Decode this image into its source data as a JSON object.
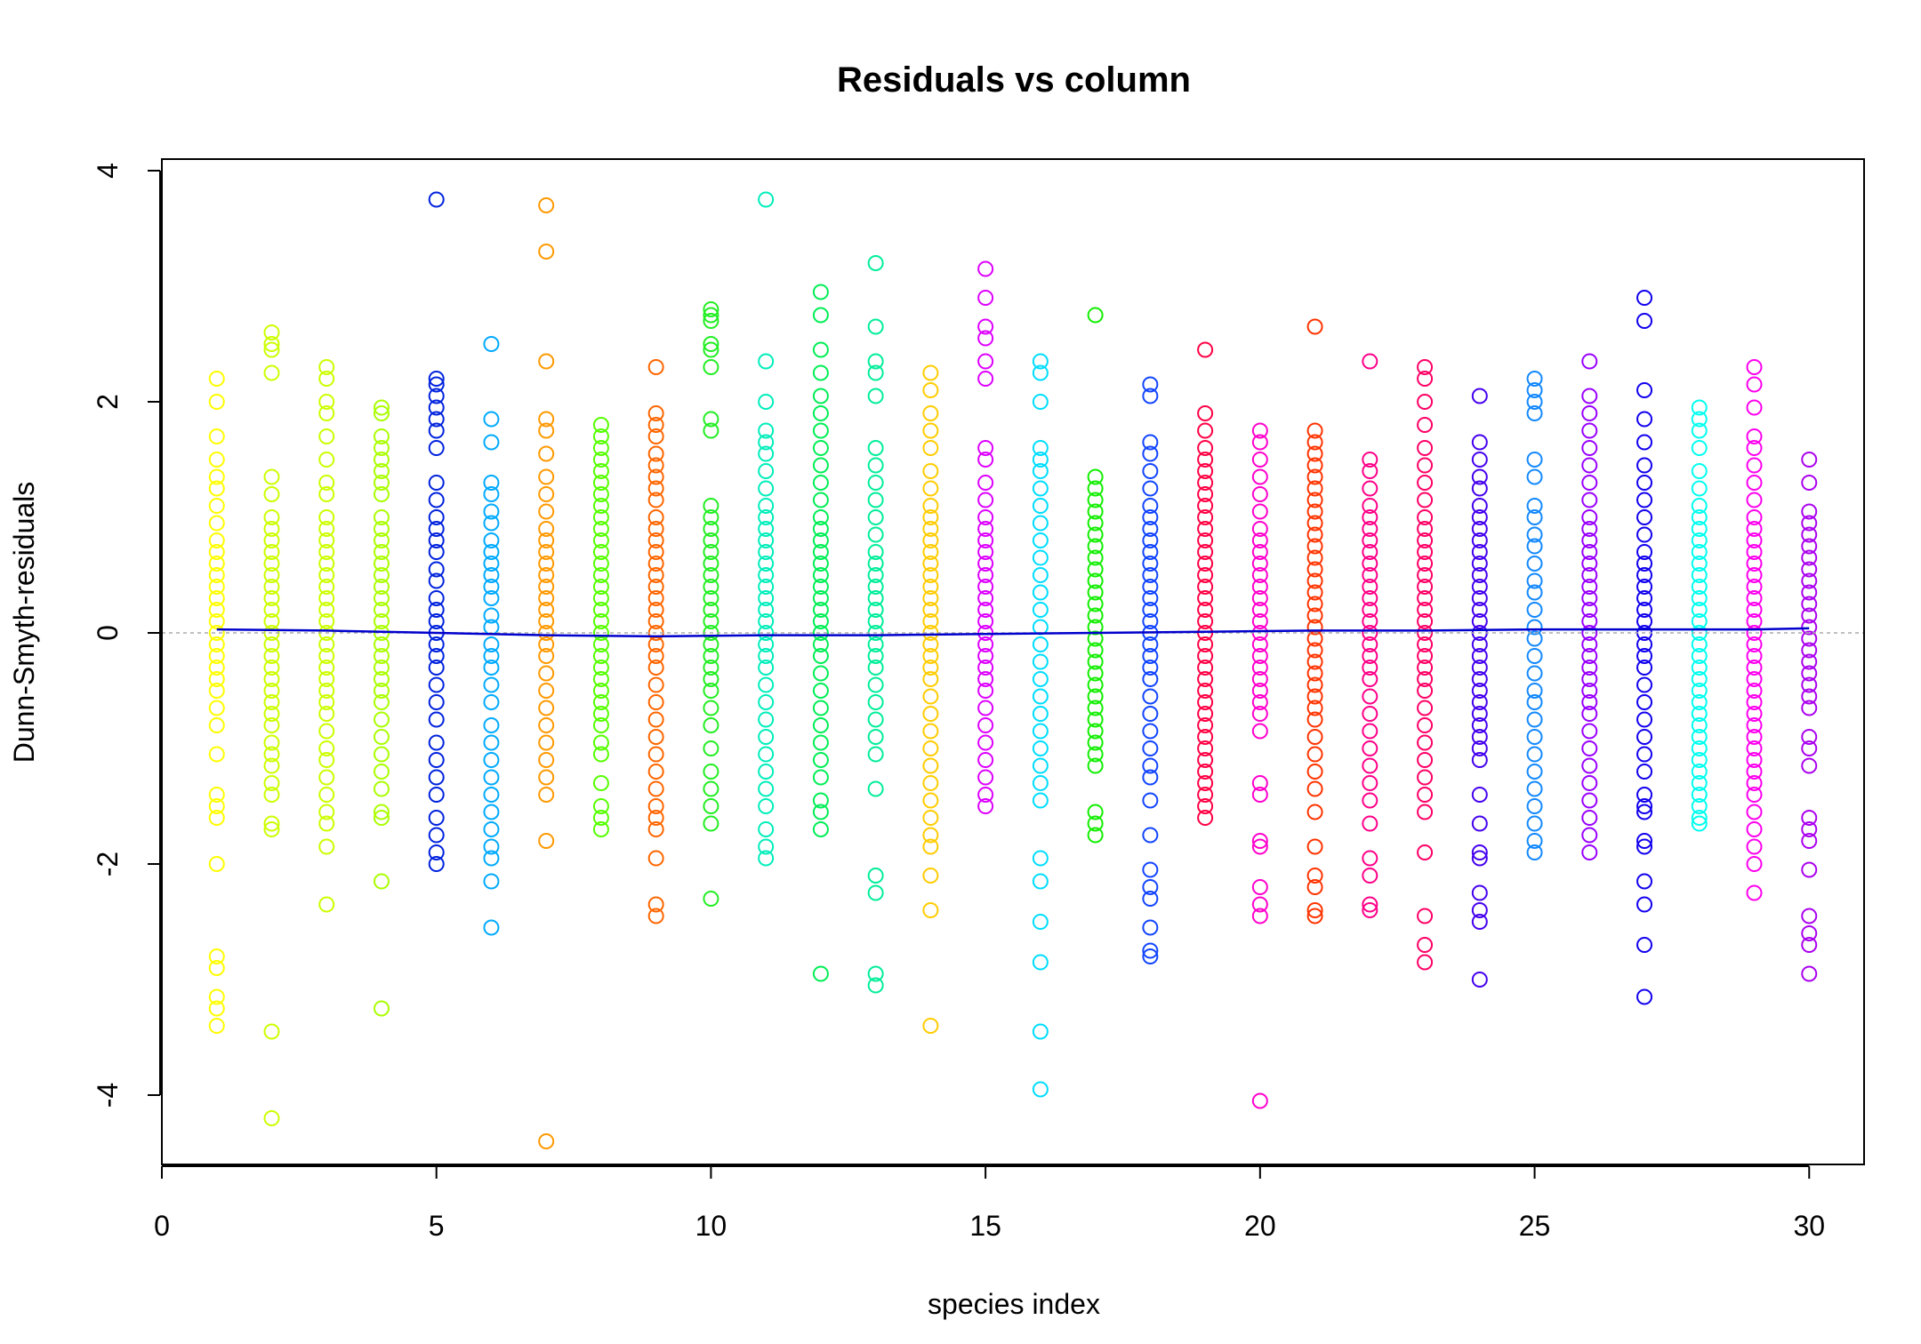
{
  "chart_data": {
    "type": "scatter",
    "title": "Residuals vs column",
    "xlabel": "species index",
    "ylabel": "Dunn-Smyth-residuals",
    "xlim": [
      0,
      31
    ],
    "ylim": [
      -4.6,
      4.1
    ],
    "xticks": [
      0,
      5,
      10,
      15,
      20,
      25,
      30
    ],
    "yticks": [
      -4,
      -2,
      0,
      2,
      4
    ],
    "reference_line": {
      "y": 0,
      "style": "dashed",
      "color": "#aaaaaa"
    },
    "marker": "open-circle",
    "columns": [
      {
        "x": 1,
        "color": "#FFFF00",
        "points": [
          2.2,
          2.0,
          1.7,
          1.5,
          1.35,
          1.25,
          1.1,
          0.95,
          0.8,
          0.7,
          0.6,
          0.5,
          0.4,
          0.3,
          0.2,
          0.1,
          0.0,
          -0.1,
          -0.2,
          -0.3,
          -0.4,
          -0.5,
          -0.65,
          -0.8,
          -1.05,
          -1.4,
          -1.5,
          -1.6,
          -2.0,
          -2.8,
          -2.9,
          -3.15,
          -3.25,
          -3.4
        ]
      },
      {
        "x": 2,
        "color": "#CCFF00",
        "points": [
          2.6,
          2.5,
          2.45,
          2.25,
          1.35,
          1.2,
          1.0,
          0.9,
          0.8,
          0.7,
          0.6,
          0.5,
          0.4,
          0.3,
          0.2,
          0.1,
          0.0,
          -0.1,
          -0.2,
          -0.3,
          -0.4,
          -0.5,
          -0.6,
          -0.7,
          -0.8,
          -0.95,
          -1.05,
          -1.15,
          -1.3,
          -1.4,
          -1.65,
          -1.7,
          -3.45,
          -4.2
        ]
      },
      {
        "x": 3,
        "color": "#CCFF00",
        "points": [
          2.3,
          2.2,
          2.0,
          1.9,
          1.7,
          1.5,
          1.3,
          1.2,
          1.0,
          0.9,
          0.8,
          0.7,
          0.6,
          0.5,
          0.4,
          0.3,
          0.2,
          0.1,
          0.0,
          -0.1,
          -0.2,
          -0.3,
          -0.4,
          -0.5,
          -0.6,
          -0.7,
          -0.85,
          -1.0,
          -1.1,
          -1.25,
          -1.4,
          -1.55,
          -1.65,
          -1.85,
          -2.35
        ]
      },
      {
        "x": 4,
        "color": "#AAFF00",
        "points": [
          1.95,
          1.9,
          1.7,
          1.6,
          1.5,
          1.4,
          1.3,
          1.2,
          1.0,
          0.9,
          0.8,
          0.7,
          0.6,
          0.5,
          0.4,
          0.3,
          0.2,
          0.1,
          0.0,
          -0.1,
          -0.2,
          -0.3,
          -0.4,
          -0.5,
          -0.6,
          -0.75,
          -0.9,
          -1.05,
          -1.2,
          -1.35,
          -1.55,
          -1.6,
          -2.15,
          -3.25
        ]
      },
      {
        "x": 5,
        "color": "#0022DD",
        "points": [
          3.75,
          2.2,
          2.15,
          2.05,
          1.95,
          1.85,
          1.75,
          1.6,
          1.3,
          1.15,
          1.0,
          0.9,
          0.8,
          0.7,
          0.55,
          0.45,
          0.3,
          0.2,
          0.1,
          0.0,
          -0.1,
          -0.2,
          -0.3,
          -0.45,
          -0.6,
          -0.75,
          -0.95,
          -1.1,
          -1.25,
          -1.4,
          -1.6,
          -1.75,
          -1.9,
          -2.0
        ]
      },
      {
        "x": 6,
        "color": "#00AAFF",
        "points": [
          2.5,
          1.85,
          1.65,
          1.3,
          1.2,
          1.05,
          0.95,
          0.8,
          0.7,
          0.6,
          0.5,
          0.4,
          0.3,
          0.15,
          0.05,
          -0.1,
          -0.2,
          -0.3,
          -0.45,
          -0.6,
          -0.8,
          -0.95,
          -1.1,
          -1.25,
          -1.4,
          -1.55,
          -1.7,
          -1.85,
          -1.95,
          -2.15,
          -2.55
        ]
      },
      {
        "x": 7,
        "color": "#FF9900",
        "points": [
          3.7,
          3.3,
          2.35,
          1.85,
          1.75,
          1.55,
          1.35,
          1.2,
          1.05,
          0.9,
          0.8,
          0.7,
          0.6,
          0.5,
          0.4,
          0.3,
          0.2,
          0.1,
          0.0,
          -0.1,
          -0.2,
          -0.35,
          -0.5,
          -0.65,
          -0.8,
          -0.95,
          -1.1,
          -1.25,
          -1.4,
          -1.8,
          -4.4
        ]
      },
      {
        "x": 8,
        "color": "#55FF00",
        "points": [
          1.8,
          1.7,
          1.6,
          1.5,
          1.4,
          1.3,
          1.2,
          1.1,
          1.0,
          0.9,
          0.8,
          0.7,
          0.6,
          0.5,
          0.4,
          0.3,
          0.2,
          0.1,
          0.0,
          -0.1,
          -0.2,
          -0.3,
          -0.4,
          -0.5,
          -0.6,
          -0.7,
          -0.8,
          -0.95,
          -1.05,
          -1.3,
          -1.5,
          -1.6,
          -1.7
        ]
      },
      {
        "x": 9,
        "color": "#FF6600",
        "points": [
          2.3,
          1.9,
          1.8,
          1.7,
          1.55,
          1.45,
          1.35,
          1.25,
          1.15,
          1.0,
          0.9,
          0.8,
          0.7,
          0.6,
          0.5,
          0.4,
          0.3,
          0.2,
          0.1,
          0.0,
          -0.1,
          -0.2,
          -0.3,
          -0.45,
          -0.6,
          -0.75,
          -0.9,
          -1.05,
          -1.2,
          -1.35,
          -1.5,
          -1.6,
          -1.7,
          -1.95,
          -2.35,
          -2.45
        ]
      },
      {
        "x": 10,
        "color": "#22EE22",
        "points": [
          2.8,
          2.75,
          2.7,
          2.5,
          2.45,
          2.3,
          1.85,
          1.75,
          1.1,
          1.0,
          0.9,
          0.8,
          0.7,
          0.6,
          0.5,
          0.4,
          0.3,
          0.2,
          0.1,
          0.0,
          -0.1,
          -0.2,
          -0.3,
          -0.4,
          -0.5,
          -0.65,
          -0.8,
          -1.0,
          -1.2,
          -1.35,
          -1.5,
          -1.65,
          -2.3
        ]
      },
      {
        "x": 11,
        "color": "#00EEBB",
        "points": [
          3.75,
          2.35,
          2.0,
          1.75,
          1.65,
          1.55,
          1.4,
          1.25,
          1.1,
          1.0,
          0.9,
          0.8,
          0.7,
          0.6,
          0.5,
          0.4,
          0.3,
          0.2,
          0.1,
          0.0,
          -0.1,
          -0.2,
          -0.3,
          -0.45,
          -0.6,
          -0.75,
          -0.9,
          -1.05,
          -1.2,
          -1.35,
          -1.5,
          -1.7,
          -1.85,
          -1.95
        ]
      },
      {
        "x": 12,
        "color": "#00EE55",
        "points": [
          2.95,
          2.75,
          2.45,
          2.25,
          2.05,
          1.9,
          1.75,
          1.6,
          1.45,
          1.3,
          1.15,
          1.0,
          0.9,
          0.8,
          0.7,
          0.6,
          0.5,
          0.4,
          0.3,
          0.2,
          0.1,
          0.0,
          -0.1,
          -0.2,
          -0.35,
          -0.5,
          -0.65,
          -0.8,
          -0.95,
          -1.1,
          -1.25,
          -1.45,
          -1.55,
          -1.7,
          -2.95
        ]
      },
      {
        "x": 13,
        "color": "#00EE99",
        "points": [
          3.2,
          2.65,
          2.35,
          2.25,
          2.05,
          1.6,
          1.45,
          1.3,
          1.15,
          1.0,
          0.85,
          0.7,
          0.6,
          0.5,
          0.4,
          0.3,
          0.2,
          0.1,
          0.0,
          -0.1,
          -0.2,
          -0.3,
          -0.45,
          -0.6,
          -0.75,
          -0.9,
          -1.05,
          -1.35,
          -2.1,
          -2.25,
          -2.95,
          -3.05
        ]
      },
      {
        "x": 14,
        "color": "#FFCC00",
        "points": [
          2.25,
          2.1,
          1.9,
          1.75,
          1.6,
          1.4,
          1.25,
          1.1,
          1.0,
          0.9,
          0.8,
          0.7,
          0.6,
          0.5,
          0.4,
          0.3,
          0.2,
          0.1,
          0.0,
          -0.1,
          -0.2,
          -0.3,
          -0.4,
          -0.55,
          -0.7,
          -0.85,
          -1.0,
          -1.15,
          -1.3,
          -1.45,
          -1.6,
          -1.75,
          -1.85,
          -2.1,
          -2.4,
          -3.4
        ]
      },
      {
        "x": 15,
        "color": "#DD00FF",
        "points": [
          3.15,
          2.9,
          2.65,
          2.55,
          2.35,
          2.2,
          1.6,
          1.5,
          1.3,
          1.15,
          1.0,
          0.9,
          0.8,
          0.7,
          0.6,
          0.5,
          0.4,
          0.3,
          0.2,
          0.1,
          0.0,
          -0.1,
          -0.2,
          -0.3,
          -0.4,
          -0.5,
          -0.65,
          -0.8,
          -0.95,
          -1.1,
          -1.25,
          -1.4,
          -1.5
        ]
      },
      {
        "x": 16,
        "color": "#00DDFF",
        "points": [
          2.35,
          2.25,
          2.0,
          1.6,
          1.5,
          1.4,
          1.25,
          1.1,
          0.95,
          0.8,
          0.65,
          0.5,
          0.35,
          0.2,
          0.05,
          -0.1,
          -0.25,
          -0.4,
          -0.55,
          -0.7,
          -0.85,
          -1.0,
          -1.15,
          -1.3,
          -1.45,
          -1.95,
          -2.15,
          -2.5,
          -2.85,
          -3.45,
          -3.95
        ]
      },
      {
        "x": 17,
        "color": "#11EE00",
        "points": [
          2.75,
          1.35,
          1.25,
          1.15,
          1.05,
          0.95,
          0.85,
          0.75,
          0.65,
          0.55,
          0.45,
          0.35,
          0.25,
          0.15,
          0.05,
          -0.05,
          -0.15,
          -0.25,
          -0.35,
          -0.45,
          -0.55,
          -0.65,
          -0.75,
          -0.85,
          -0.95,
          -1.05,
          -1.15,
          -1.55,
          -1.65,
          -1.75
        ]
      },
      {
        "x": 18,
        "color": "#1144FF",
        "points": [
          2.15,
          2.05,
          1.65,
          1.55,
          1.4,
          1.25,
          1.1,
          1.0,
          0.9,
          0.8,
          0.7,
          0.6,
          0.5,
          0.4,
          0.3,
          0.2,
          0.1,
          0.0,
          -0.1,
          -0.2,
          -0.3,
          -0.4,
          -0.55,
          -0.7,
          -0.85,
          -1.0,
          -1.15,
          -1.25,
          -1.45,
          -1.75,
          -2.05,
          -2.2,
          -2.3,
          -2.55,
          -2.75,
          -2.8
        ]
      },
      {
        "x": 19,
        "color": "#FF0044",
        "points": [
          2.45,
          1.9,
          1.75,
          1.6,
          1.5,
          1.4,
          1.3,
          1.2,
          1.1,
          1.0,
          0.9,
          0.8,
          0.7,
          0.6,
          0.5,
          0.4,
          0.3,
          0.2,
          0.1,
          0.0,
          -0.1,
          -0.2,
          -0.3,
          -0.4,
          -0.5,
          -0.6,
          -0.7,
          -0.8,
          -0.9,
          -1.0,
          -1.1,
          -1.2,
          -1.3,
          -1.4,
          -1.5,
          -1.6
        ]
      },
      {
        "x": 20,
        "color": "#FF00CC",
        "points": [
          1.75,
          1.65,
          1.5,
          1.35,
          1.2,
          1.05,
          0.9,
          0.8,
          0.7,
          0.6,
          0.5,
          0.4,
          0.3,
          0.2,
          0.1,
          0.0,
          -0.1,
          -0.2,
          -0.3,
          -0.4,
          -0.5,
          -0.6,
          -0.7,
          -0.85,
          -1.3,
          -1.4,
          -1.8,
          -1.85,
          -2.2,
          -2.35,
          -2.45,
          -4.05
        ]
      },
      {
        "x": 21,
        "color": "#FF3300",
        "points": [
          2.65,
          1.75,
          1.65,
          1.55,
          1.45,
          1.35,
          1.25,
          1.15,
          1.05,
          0.95,
          0.85,
          0.75,
          0.65,
          0.55,
          0.45,
          0.35,
          0.25,
          0.15,
          0.05,
          -0.05,
          -0.15,
          -0.25,
          -0.35,
          -0.45,
          -0.55,
          -0.65,
          -0.75,
          -0.9,
          -1.05,
          -1.2,
          -1.35,
          -1.55,
          -1.85,
          -2.1,
          -2.2,
          -2.4,
          -2.45
        ]
      },
      {
        "x": 22,
        "color": "#FF0088",
        "points": [
          2.35,
          1.5,
          1.4,
          1.25,
          1.1,
          1.0,
          0.9,
          0.8,
          0.7,
          0.6,
          0.5,
          0.4,
          0.3,
          0.2,
          0.1,
          0.0,
          -0.1,
          -0.2,
          -0.3,
          -0.4,
          -0.55,
          -0.7,
          -0.85,
          -1.0,
          -1.15,
          -1.3,
          -1.45,
          -1.65,
          -1.95,
          -2.1,
          -2.35,
          -2.4
        ]
      },
      {
        "x": 23,
        "color": "#FF0066",
        "points": [
          2.3,
          2.2,
          2.0,
          1.8,
          1.6,
          1.45,
          1.3,
          1.15,
          1.0,
          0.9,
          0.8,
          0.7,
          0.6,
          0.5,
          0.4,
          0.3,
          0.2,
          0.1,
          0.0,
          -0.1,
          -0.2,
          -0.3,
          -0.4,
          -0.5,
          -0.65,
          -0.8,
          -0.95,
          -1.1,
          -1.25,
          -1.4,
          -1.55,
          -1.9,
          -2.45,
          -2.7,
          -2.85
        ]
      },
      {
        "x": 24,
        "color": "#4400EE",
        "points": [
          2.05,
          1.65,
          1.5,
          1.35,
          1.25,
          1.1,
          1.0,
          0.9,
          0.8,
          0.7,
          0.6,
          0.5,
          0.4,
          0.3,
          0.2,
          0.1,
          0.0,
          -0.1,
          -0.2,
          -0.3,
          -0.4,
          -0.5,
          -0.6,
          -0.7,
          -0.8,
          -0.9,
          -1.0,
          -1.1,
          -1.4,
          -1.65,
          -1.9,
          -1.95,
          -2.25,
          -2.4,
          -2.5,
          -3.0
        ]
      },
      {
        "x": 25,
        "color": "#1188FF",
        "points": [
          2.2,
          2.1,
          2.0,
          1.9,
          1.5,
          1.35,
          1.1,
          1.0,
          0.85,
          0.75,
          0.6,
          0.45,
          0.35,
          0.2,
          0.05,
          -0.05,
          -0.2,
          -0.35,
          -0.5,
          -0.6,
          -0.75,
          -0.9,
          -1.05,
          -1.2,
          -1.35,
          -1.5,
          -1.65,
          -1.8,
          -1.9
        ]
      },
      {
        "x": 26,
        "color": "#9900FF",
        "points": [
          2.35,
          2.05,
          1.9,
          1.75,
          1.6,
          1.45,
          1.3,
          1.15,
          1.0,
          0.9,
          0.8,
          0.7,
          0.6,
          0.5,
          0.4,
          0.3,
          0.2,
          0.1,
          0.0,
          -0.1,
          -0.2,
          -0.3,
          -0.4,
          -0.5,
          -0.6,
          -0.7,
          -0.85,
          -1.0,
          -1.15,
          -1.3,
          -1.45,
          -1.6,
          -1.75,
          -1.9
        ]
      },
      {
        "x": 27,
        "color": "#1100EE",
        "points": [
          2.9,
          2.7,
          2.1,
          1.85,
          1.65,
          1.45,
          1.3,
          1.15,
          1.0,
          0.85,
          0.7,
          0.6,
          0.5,
          0.4,
          0.3,
          0.2,
          0.1,
          0.0,
          -0.1,
          -0.2,
          -0.3,
          -0.45,
          -0.6,
          -0.75,
          -0.9,
          -1.05,
          -1.2,
          -1.4,
          -1.5,
          -1.55,
          -1.8,
          -1.85,
          -2.15,
          -2.35,
          -2.7,
          -3.15
        ]
      },
      {
        "x": 28,
        "color": "#00FFEE",
        "points": [
          1.95,
          1.85,
          1.75,
          1.6,
          1.4,
          1.25,
          1.1,
          1.0,
          0.9,
          0.8,
          0.7,
          0.6,
          0.5,
          0.4,
          0.3,
          0.2,
          0.1,
          0.0,
          -0.1,
          -0.2,
          -0.3,
          -0.4,
          -0.5,
          -0.6,
          -0.7,
          -0.8,
          -0.9,
          -1.0,
          -1.1,
          -1.2,
          -1.3,
          -1.4,
          -1.5,
          -1.6,
          -1.65
        ]
      },
      {
        "x": 29,
        "color": "#FF00EE",
        "points": [
          2.3,
          2.15,
          1.95,
          1.7,
          1.6,
          1.45,
          1.3,
          1.15,
          1.0,
          0.9,
          0.8,
          0.7,
          0.6,
          0.5,
          0.4,
          0.3,
          0.2,
          0.1,
          0.0,
          -0.1,
          -0.2,
          -0.3,
          -0.4,
          -0.5,
          -0.6,
          -0.7,
          -0.8,
          -0.9,
          -1.0,
          -1.1,
          -1.2,
          -1.3,
          -1.4,
          -1.55,
          -1.7,
          -1.85,
          -2.0,
          -2.25
        ]
      },
      {
        "x": 30,
        "color": "#AA00EE",
        "points": [
          1.5,
          1.3,
          1.05,
          0.95,
          0.85,
          0.75,
          0.65,
          0.55,
          0.45,
          0.35,
          0.25,
          0.15,
          0.05,
          -0.05,
          -0.15,
          -0.25,
          -0.35,
          -0.45,
          -0.55,
          -0.65,
          -0.9,
          -1.0,
          -1.15,
          -1.6,
          -1.7,
          -1.8,
          -2.05,
          -2.45,
          -2.6,
          -2.7,
          -2.95
        ]
      }
    ],
    "trend_line": {
      "color": "#0000CC",
      "x": [
        1,
        3,
        5,
        7,
        9,
        11,
        13,
        15,
        17,
        19,
        21,
        23,
        25,
        27,
        29,
        30
      ],
      "y": [
        0.03,
        0.02,
        0.0,
        -0.02,
        -0.03,
        -0.02,
        -0.02,
        -0.01,
        0.0,
        0.01,
        0.02,
        0.02,
        0.03,
        0.03,
        0.03,
        0.04
      ]
    }
  }
}
